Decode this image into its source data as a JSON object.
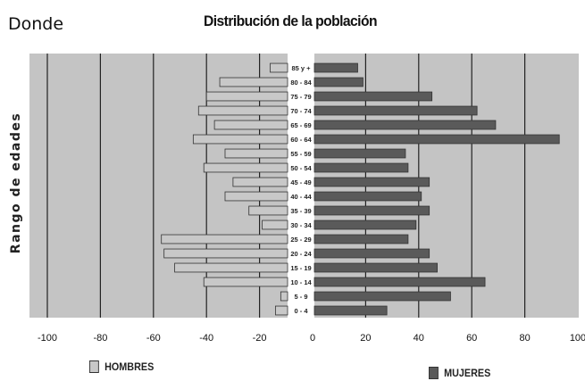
{
  "header": {
    "word": "Donde"
  },
  "chart_data": {
    "type": "bar",
    "title": "Distribución de la población",
    "ylabel": "Rango de edades",
    "xlabel": "",
    "xlim": [
      -100,
      100
    ],
    "x_ticks": [
      "-100",
      "-80",
      "-60",
      "-40",
      "-20",
      "0",
      "20",
      "40",
      "60",
      "80",
      "100"
    ],
    "grid": true,
    "legend_placement": "bottom",
    "categories": [
      "85 y +",
      "80 - 84",
      "75 - 79",
      "70 - 74",
      "65 - 69",
      "60 - 64",
      "55 - 59",
      "50 - 54",
      "45 - 49",
      "40 - 44",
      "35 - 39",
      "30 - 34",
      "25 - 29",
      "20 - 24",
      "15 - 19",
      "10 - 14",
      "5 - 9",
      "0 - 4"
    ],
    "series": [
      {
        "name": "HOMBRES",
        "color": "#c8c8c8",
        "values": [
          -16,
          -35,
          -40,
          -43,
          -37,
          -45,
          -33,
          -41,
          -30,
          -33,
          -24,
          -19,
          -57,
          -56,
          -52,
          -41,
          -12,
          -14
        ]
      },
      {
        "name": "MUJERES",
        "color": "#5a5a5a",
        "values": [
          17,
          19,
          45,
          62,
          69,
          93,
          35,
          36,
          44,
          41,
          44,
          39,
          36,
          44,
          47,
          65,
          52,
          28
        ]
      }
    ],
    "colors": {
      "background": "#c4c4c4",
      "gridline": "#222222",
      "bar_outline": "#333333",
      "center_band": "#ffffff"
    }
  }
}
